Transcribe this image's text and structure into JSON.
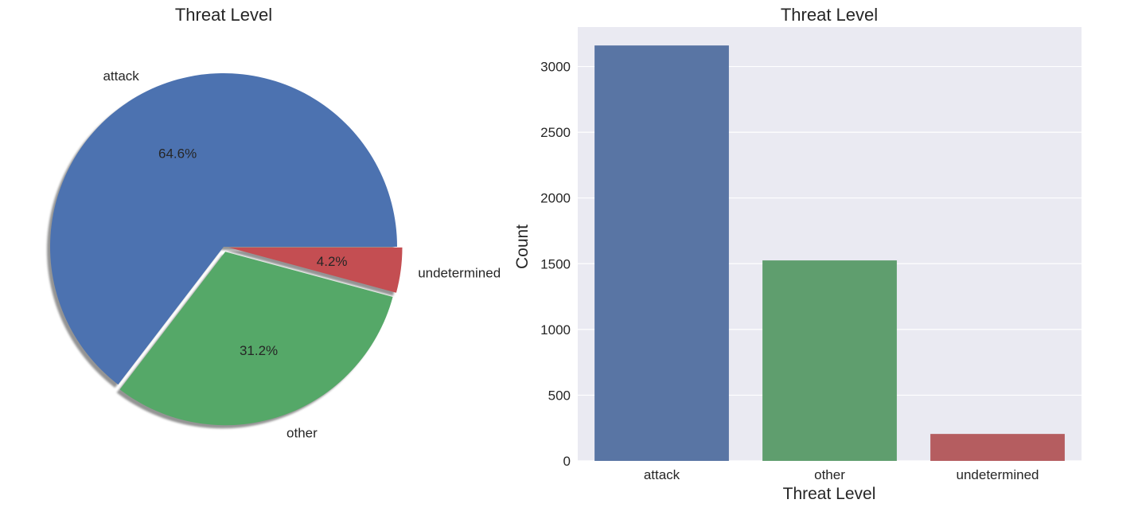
{
  "chart_data": [
    {
      "type": "pie",
      "title": "Threat Level",
      "categories": [
        "attack",
        "other",
        "undetermined"
      ],
      "values": [
        64.6,
        31.2,
        4.2
      ],
      "percent_labels": [
        "64.6%",
        "31.2%",
        "4.2%"
      ],
      "explode": [
        0,
        0.03,
        0.03
      ],
      "shadow": true,
      "start_angle_deg": 0,
      "direction": "counterclockwise",
      "colors": [
        "#4c72b0",
        "#55a868",
        "#c44e52"
      ]
    },
    {
      "type": "bar",
      "title": "Threat Level",
      "categories": [
        "attack",
        "other",
        "undetermined"
      ],
      "values": [
        3160,
        1525,
        205
      ],
      "xlabel": "Threat Level",
      "ylabel": "Count",
      "ylim": [
        0,
        3300
      ],
      "yticks": [
        0,
        500,
        1000,
        1500,
        2000,
        2500,
        3000
      ],
      "grid": true,
      "background": "#eaeaf2",
      "colors": [
        "#5975a4",
        "#5f9e6e",
        "#b55d60"
      ]
    }
  ]
}
